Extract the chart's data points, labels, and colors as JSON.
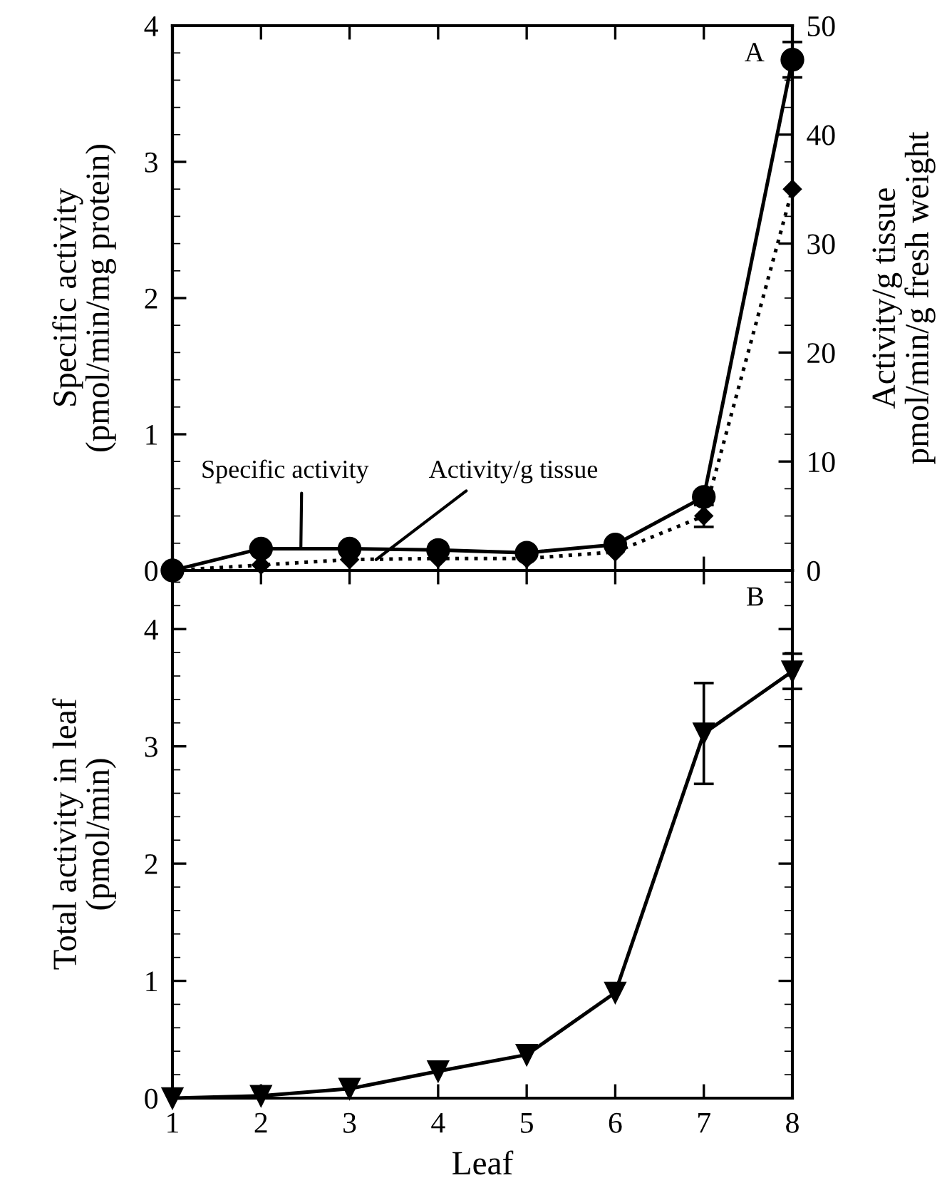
{
  "chart_data": [
    {
      "type": "line",
      "x": [
        1,
        2,
        3,
        4,
        5,
        6,
        7,
        8
      ],
      "xlim": [
        1,
        8
      ],
      "xticks": [
        1,
        2,
        3,
        4,
        5,
        6,
        7,
        8
      ],
      "ylim": [
        0,
        4
      ],
      "yticks": [
        0,
        1,
        2,
        3,
        4
      ],
      "y2lim": [
        0,
        50
      ],
      "y2ticks": [
        0,
        10,
        20,
        30,
        40,
        50
      ],
      "ylabel": "Specific activity\n(pmol/min/mg protein)",
      "y2label": "Activity/g tissue\npmol/min/g fresh weight",
      "tick_labels": "y",
      "grid": false,
      "legend": false,
      "series": [
        {
          "color": "#000000",
          "marker": "circle",
          "line_style": "solid",
          "values": [
            0,
            0.16,
            0.16,
            0.15,
            0.13,
            0.19,
            0.54,
            3.75
          ],
          "errors": [
            null,
            null,
            null,
            null,
            null,
            null,
            null,
            0.13
          ]
        },
        {
          "color": "#000000",
          "marker": "diamond",
          "line_style": "dotted",
          "axis": "y2",
          "values": [
            0,
            0.5,
            1.0,
            1.1,
            1.1,
            1.7,
            5.0,
            35
          ],
          "errors": [
            null,
            null,
            null,
            null,
            null,
            null,
            1.0,
            null
          ]
        }
      ],
      "annotations": [
        "A",
        {
          "text": "Specific activity",
          "x": 2.45,
          "y": 0.16
        },
        {
          "text": "Activity/g tissue",
          "x": 3.3,
          "y": 0.08
        }
      ]
    },
    {
      "type": "line",
      "x": [
        1,
        2,
        3,
        4,
        5,
        6,
        7,
        8
      ],
      "xlim": [
        1,
        8
      ],
      "xticks": [
        1,
        2,
        3,
        4,
        5,
        6,
        7,
        8
      ],
      "ylim": [
        0,
        4.5
      ],
      "yticks": [
        0,
        1,
        2,
        3,
        4
      ],
      "xlabel": "Leaf",
      "ylabel": "Total activity in leaf\n(pmol/min)",
      "grid": false,
      "legend": false,
      "series": [
        {
          "color": "#000000",
          "marker": "triangle",
          "line_style": "solid",
          "values": [
            0,
            0.02,
            0.08,
            0.23,
            0.37,
            0.9,
            3.11,
            3.64
          ],
          "errors": [
            null,
            null,
            null,
            null,
            null,
            null,
            0.43,
            0.15
          ]
        }
      ],
      "annotations": [
        "B"
      ]
    }
  ]
}
